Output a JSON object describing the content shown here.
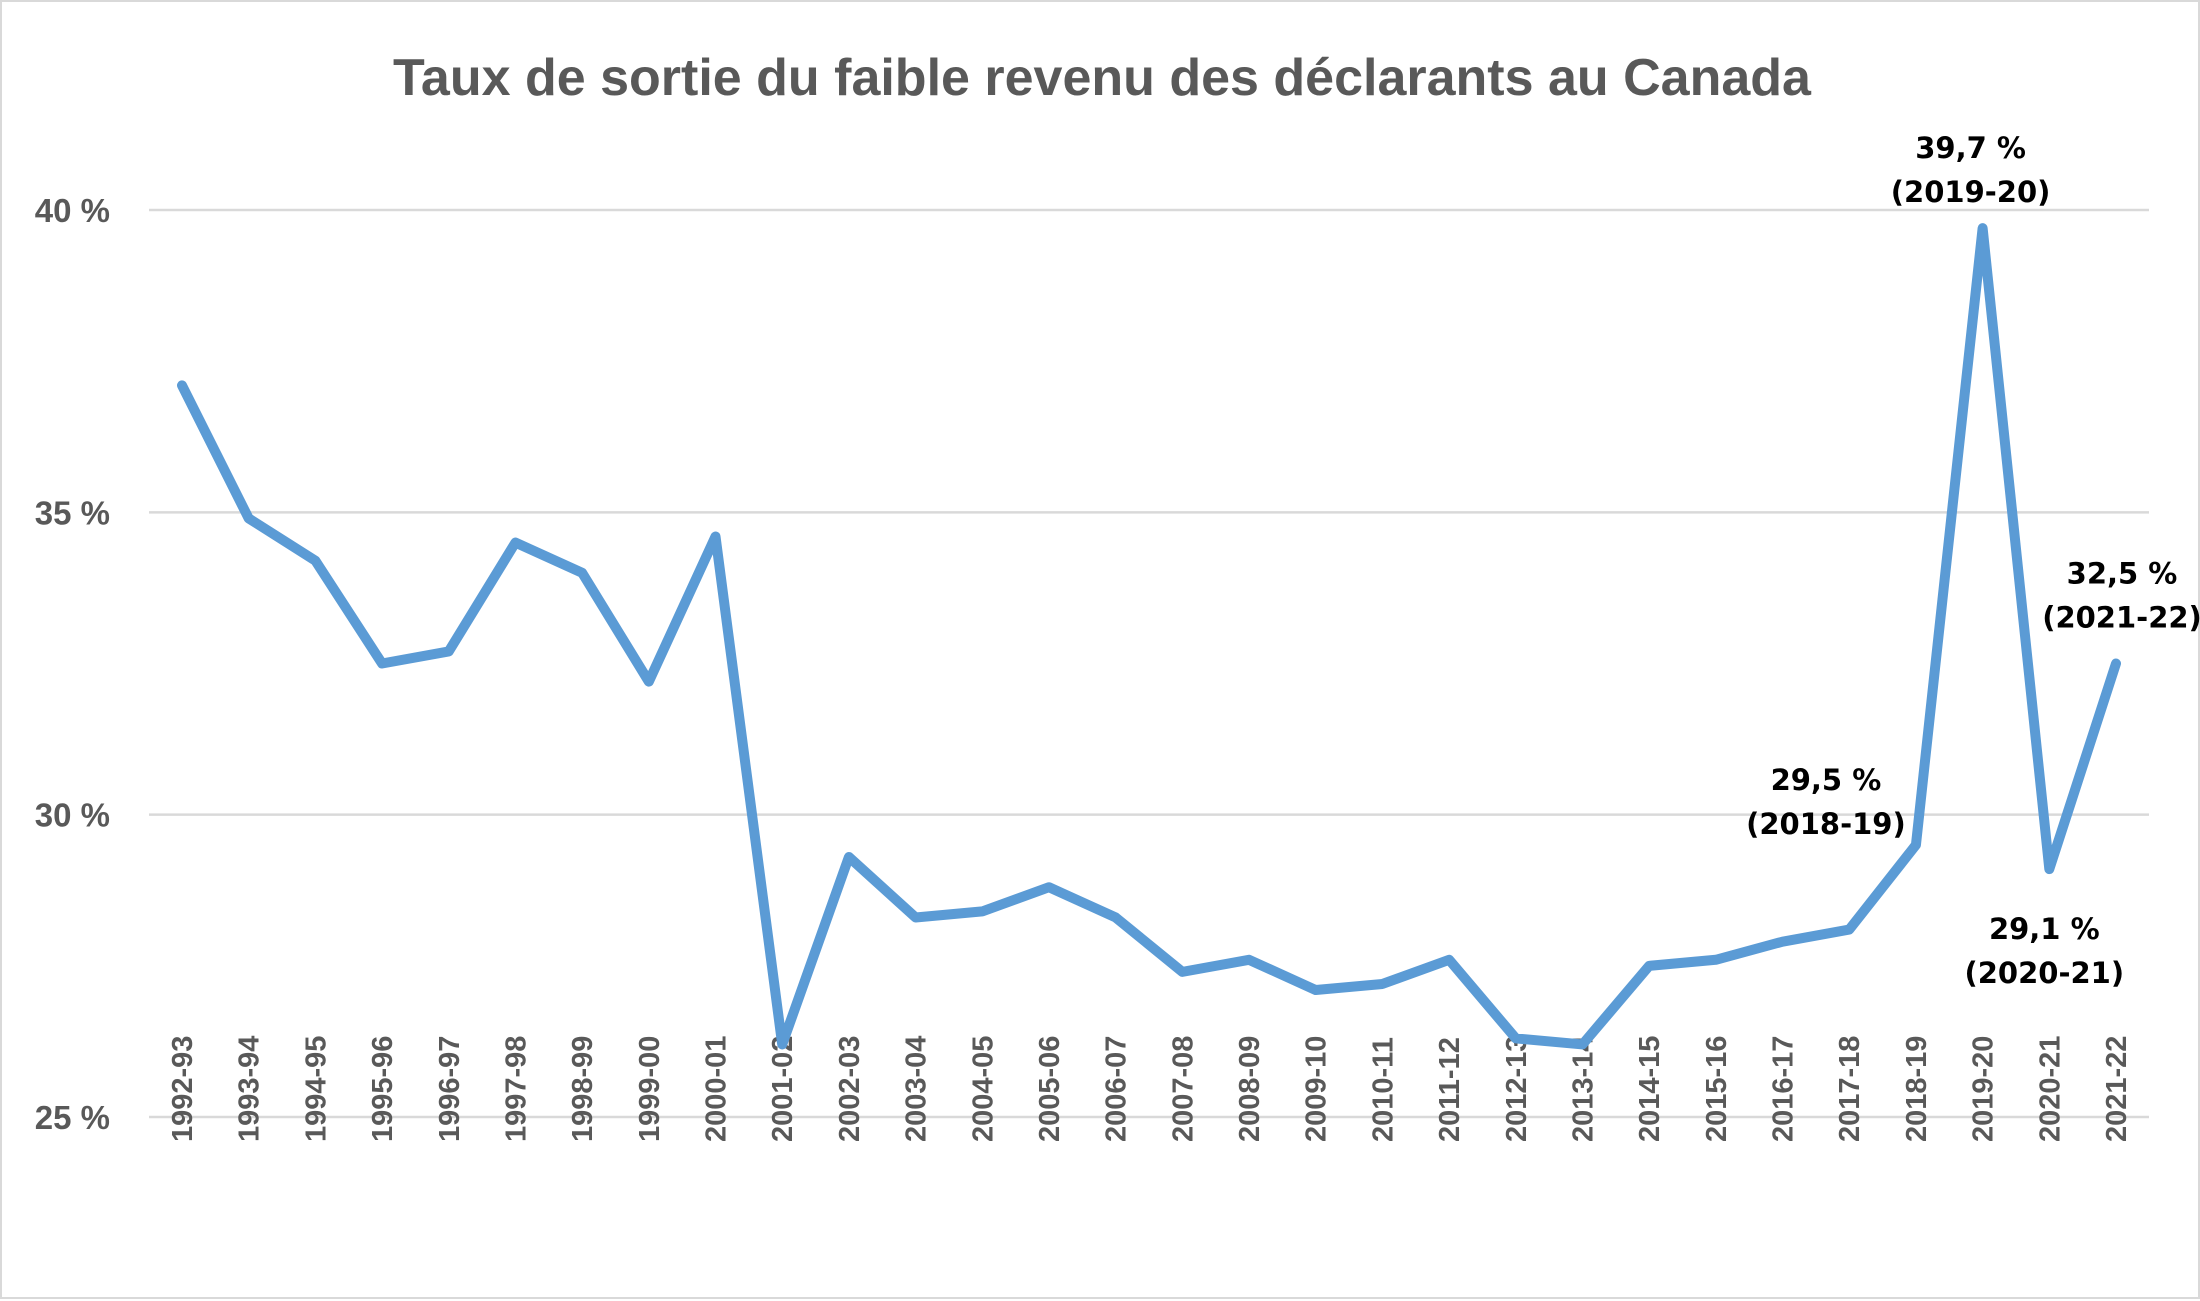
{
  "chart_data": {
    "type": "line",
    "title": "Taux de sortie du faible revenu des déclarants au Canada",
    "xlabel": "",
    "ylabel": "",
    "ylim": [
      25,
      40
    ],
    "yticks": [
      "25 %",
      "30 %",
      "35 %",
      "40 %"
    ],
    "ytick_values": [
      25,
      30,
      35,
      40
    ],
    "grid": "horizontal",
    "legend": "none",
    "line_color": "#5b9bd5",
    "categories": [
      "1992-93",
      "1993-94",
      "1994-95",
      "1995-96",
      "1996-97",
      "1997-98",
      "1998-99",
      "1999-00",
      "2000-01",
      "2001-02",
      "2002-03",
      "2003-04",
      "2004-05",
      "2005-06",
      "2006-07",
      "2007-08",
      "2008-09",
      "2009-10",
      "2010-11",
      "2011-12",
      "2012-13",
      "2013-14",
      "2014-15",
      "2015-16",
      "2016-17",
      "2017-18",
      "2018-19",
      "2019-20",
      "2020-21",
      "2021-22"
    ],
    "series": [
      {
        "values": [
          37.1,
          34.9,
          34.2,
          32.5,
          32.7,
          34.5,
          34.0,
          32.2,
          34.6,
          26.2,
          29.3,
          28.3,
          28.4,
          28.8,
          28.3,
          27.4,
          27.6,
          27.1,
          27.2,
          27.6,
          26.3,
          26.2,
          27.5,
          27.6,
          27.9,
          28.1,
          29.5,
          39.7,
          29.1,
          32.5
        ]
      }
    ],
    "annotations": [
      {
        "category": "2018-19",
        "value_text": "29,5 %",
        "period_text": "(2018-19)",
        "placement": "upper-left"
      },
      {
        "category": "2019-20",
        "value_text": "39,7 %",
        "period_text": "(2019-20)",
        "placement": "above"
      },
      {
        "category": "2020-21",
        "value_text": "29,1 %",
        "period_text": "(2020-21)",
        "placement": "below"
      },
      {
        "category": "2021-22",
        "value_text": "32,5 %",
        "period_text": "(2021-22)",
        "placement": "above"
      }
    ]
  }
}
